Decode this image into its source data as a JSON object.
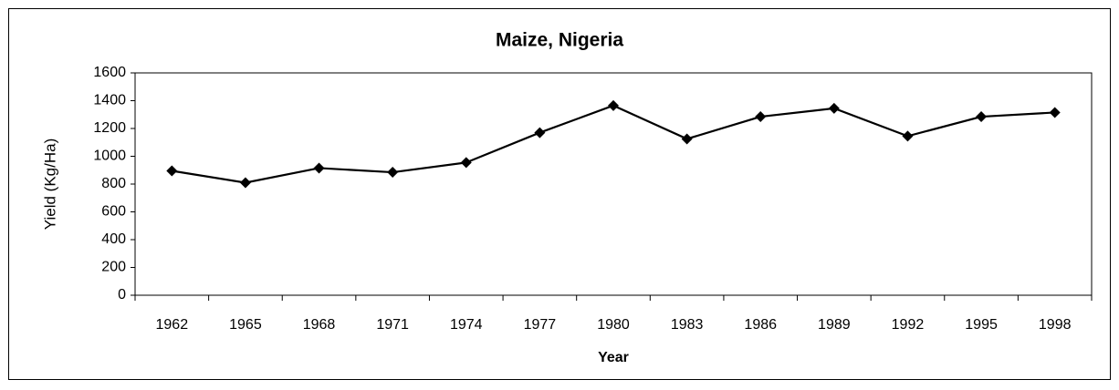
{
  "chart_data": {
    "type": "line",
    "title": "Maize, Nigeria",
    "x_label": "Year",
    "y_label": "Yield (Kg/Ha)",
    "categories": [
      "1962",
      "1965",
      "1968",
      "1971",
      "1974",
      "1977",
      "1980",
      "1983",
      "1986",
      "1989",
      "1992",
      "1995",
      "1998"
    ],
    "series": [
      {
        "name": "Yield",
        "color": "#000000",
        "values": [
          895,
          810,
          915,
          885,
          955,
          1170,
          1365,
          1125,
          1285,
          1345,
          1145,
          1285,
          1315
        ]
      }
    ],
    "ylim": [
      0,
      1600
    ],
    "yticks": [
      0,
      200,
      400,
      600,
      800,
      1000,
      1200,
      1400,
      1600
    ],
    "grid": false,
    "legend": false
  }
}
